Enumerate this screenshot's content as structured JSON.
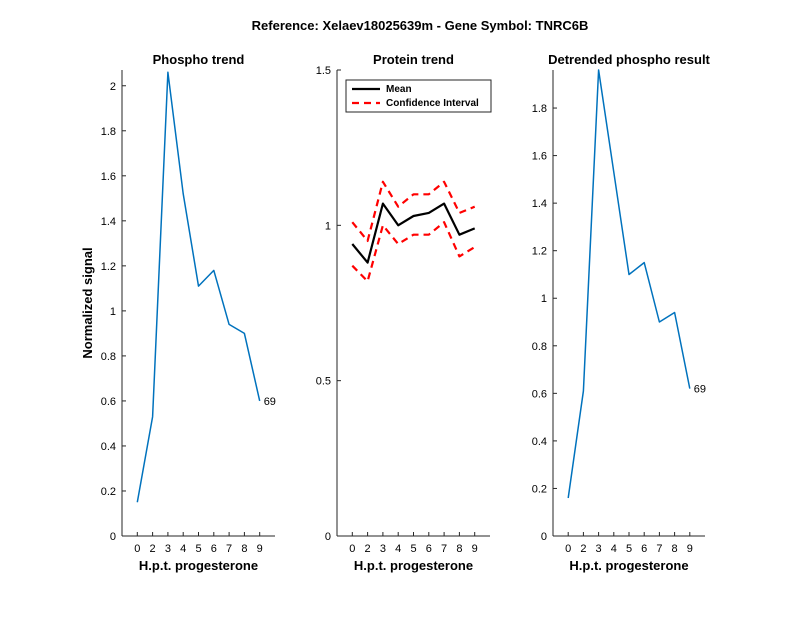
{
  "suptitle": "Reference:  Xelaev18025639m - Gene Symbol:  TNRC6B",
  "colors": {
    "line": "#0072BD",
    "mean": "#000000",
    "ci": "#FF0000",
    "axis": "#262626"
  },
  "chart_data": [
    {
      "type": "line",
      "title": "Phospho trend",
      "xlabel": "H.p.t. progesterone",
      "ylabel": "Normalized signal",
      "categories": [
        "0",
        "2",
        "3",
        "4",
        "5",
        "6",
        "7",
        "8",
        "9"
      ],
      "ylim": [
        0,
        2.07
      ],
      "yticks": [
        "0",
        "0.2",
        "0.4",
        "0.6",
        "0.8",
        "1",
        "1.2",
        "1.4",
        "1.6",
        "1.8",
        "2"
      ],
      "series": [
        {
          "values": [
            0.15,
            0.53,
            2.06,
            1.52,
            1.11,
            1.18,
            0.94,
            0.9,
            0.6
          ]
        }
      ],
      "annotation": "69"
    },
    {
      "type": "line",
      "title": "Protein trend",
      "xlabel": "H.p.t. progesterone",
      "ylabel": "",
      "categories": [
        "0",
        "2",
        "3",
        "4",
        "5",
        "6",
        "7",
        "8",
        "9"
      ],
      "ylim": [
        0,
        1.5
      ],
      "yticks": [
        "0",
        "0.5",
        "1",
        "1.5"
      ],
      "legend": {
        "position": "top-left",
        "entries": [
          "Mean",
          "Confidence Interval"
        ]
      },
      "series": [
        {
          "name": "Mean",
          "values": [
            0.94,
            0.88,
            1.07,
            1.0,
            1.03,
            1.04,
            1.07,
            0.97,
            0.99
          ]
        },
        {
          "name": "Confidence Interval",
          "values": [
            1.01,
            0.95,
            1.14,
            1.06,
            1.1,
            1.1,
            1.14,
            1.04,
            1.06
          ]
        },
        {
          "name": "Confidence Interval",
          "values": [
            0.87,
            0.82,
            1.0,
            0.94,
            0.97,
            0.97,
            1.01,
            0.9,
            0.93
          ]
        }
      ]
    },
    {
      "type": "line",
      "title": "Detrended phospho result",
      "xlabel": "H.p.t. progesterone",
      "ylabel": "",
      "categories": [
        "0",
        "2",
        "3",
        "4",
        "5",
        "6",
        "7",
        "8",
        "9"
      ],
      "ylim": [
        0,
        1.96
      ],
      "yticks": [
        "0",
        "0.2",
        "0.4",
        "0.6",
        "0.8",
        "1",
        "1.2",
        "1.4",
        "1.6",
        "1.8"
      ],
      "series": [
        {
          "values": [
            0.16,
            0.61,
            1.96,
            1.53,
            1.1,
            1.15,
            0.9,
            0.94,
            0.62
          ]
        }
      ],
      "annotation": "69"
    }
  ]
}
